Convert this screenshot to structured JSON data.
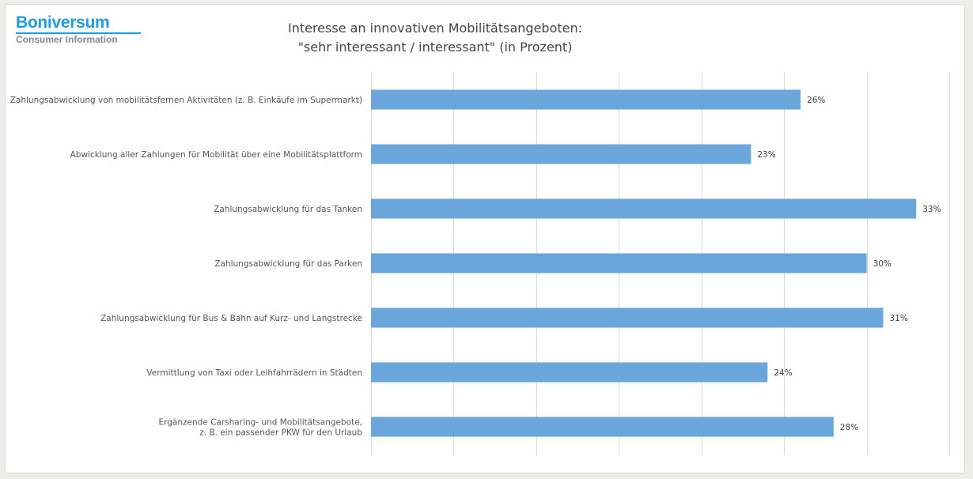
{
  "logo": {
    "name": "Boniversum",
    "subtitle": "Consumer Information"
  },
  "chart_data": {
    "type": "bar",
    "orientation": "horizontal",
    "title_lines": [
      "Interesse an innovativen Mobilitätsangeboten:",
      "\"sehr interessant / interessant\" (in Prozent)"
    ],
    "categories": [
      [
        "Zahlungsabwicklung von mobilitätsfernen Aktivitäten (z. B. Einkäufe im Supermarkt)"
      ],
      [
        "Abwicklung aller Zahlungen für Mobilität über eine Mobilitätsplattform"
      ],
      [
        "Zahlungsabwicklung für das Tanken"
      ],
      [
        "Zahlungsabwicklung für das Parken"
      ],
      [
        "Zahlungsabwicklung für Bus & Bahn auf Kurz- und Langstrecke"
      ],
      [
        "Vermittlung von Taxi oder Leihfahrrädern in Städten"
      ],
      [
        "Ergänzende Carsharing- und Mobilitätsangebote,",
        "z. B. ein passender PKW für den Urlaub"
      ]
    ],
    "values": [
      26,
      23,
      33,
      30,
      31,
      24,
      28
    ],
    "value_labels": [
      "26%",
      "23%",
      "33%",
      "30%",
      "31%",
      "24%",
      "28%"
    ],
    "xlim": [
      0,
      35
    ],
    "x_gridlines": [
      0,
      5,
      10,
      15,
      20,
      25,
      30,
      35
    ],
    "grid": true,
    "bar_color": "#6aa6dc",
    "grid_color": "#d9d9d9"
  }
}
